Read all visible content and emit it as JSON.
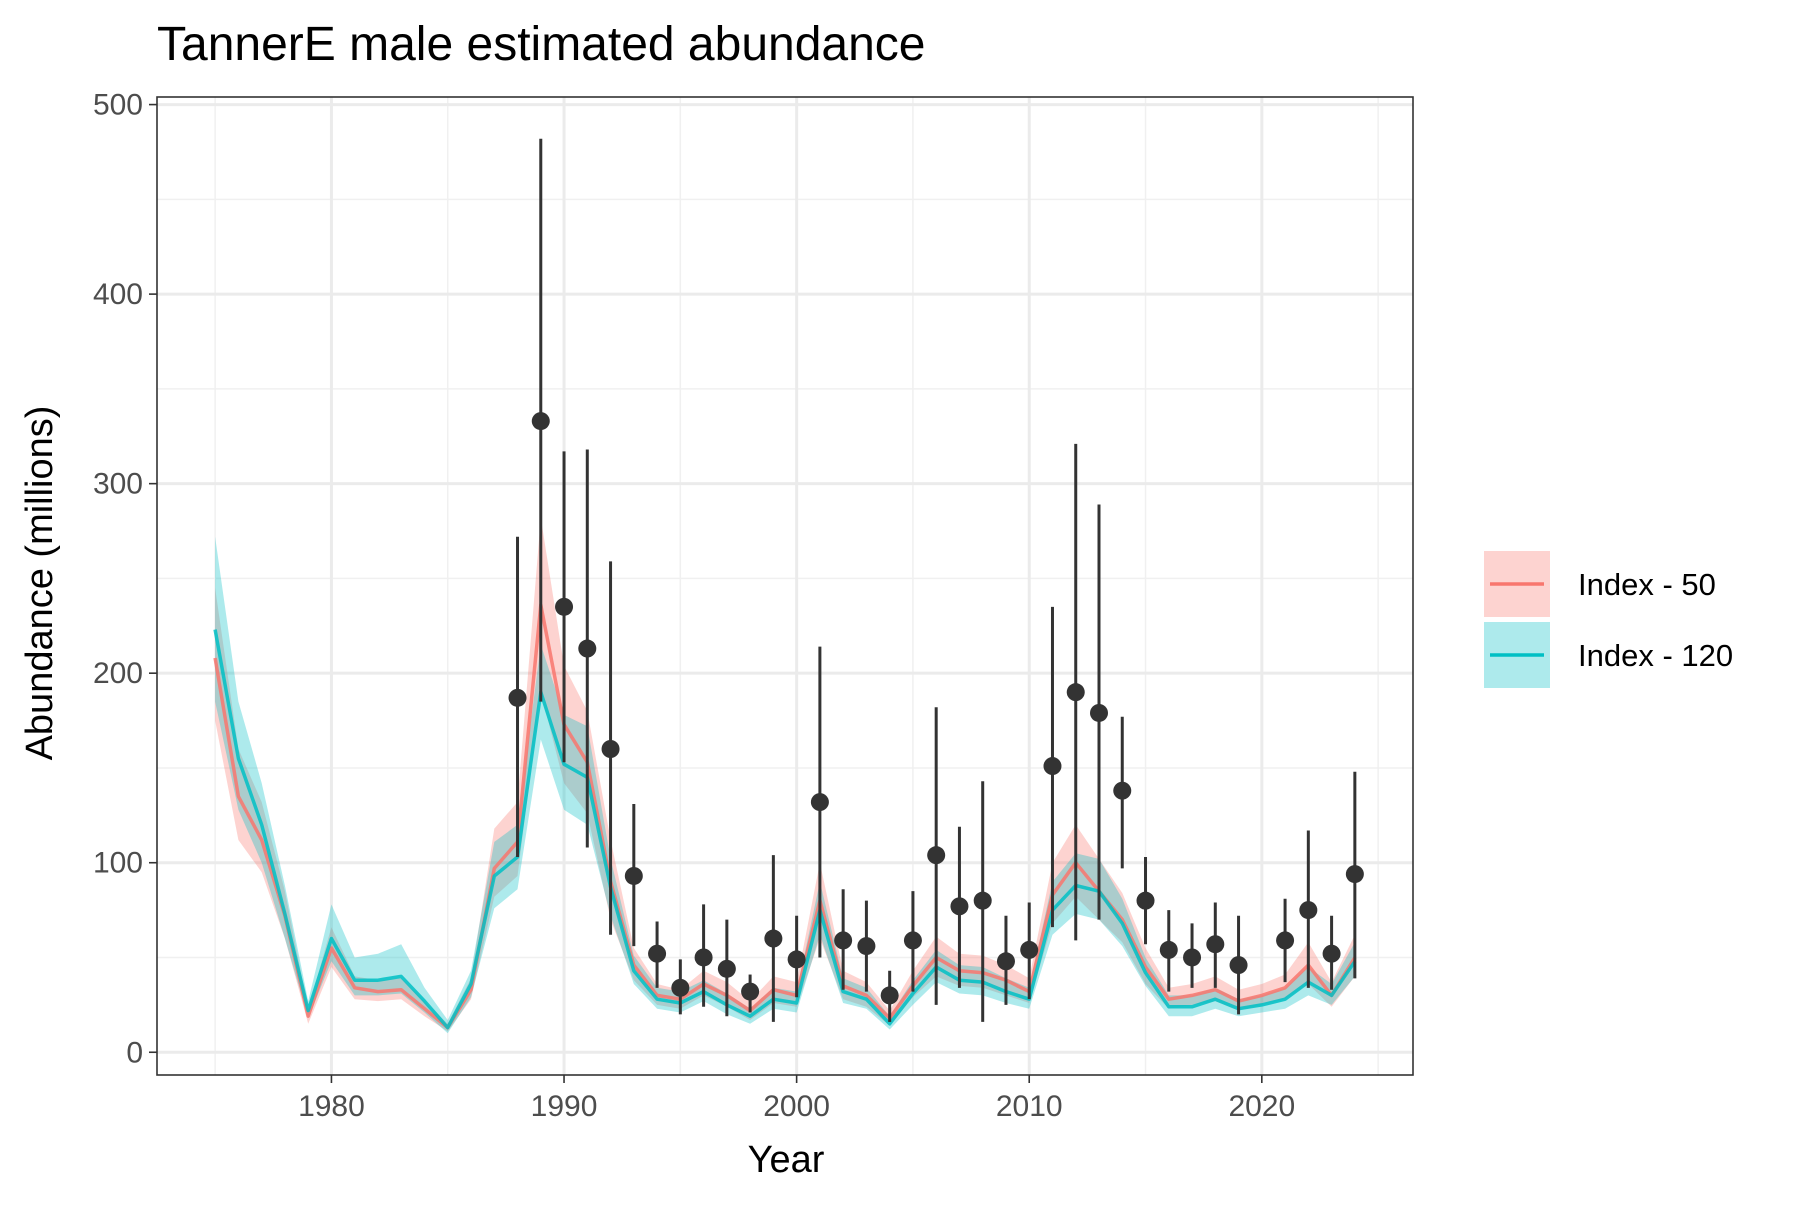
{
  "chart_data": {
    "type": "line",
    "title": "TannerE male estimated abundance",
    "xlabel": "Year",
    "ylabel": "Abundance (millions)",
    "xlim": [
      1972.5,
      2026.5
    ],
    "ylim": [
      -12,
      504
    ],
    "x_ticks": [
      1980,
      1990,
      2000,
      2010,
      2020
    ],
    "y_ticks": [
      0,
      100,
      200,
      300,
      400,
      500
    ],
    "grid": true,
    "legend_position": "right",
    "series": [
      {
        "name": "Index - 50",
        "color": "#F8766D",
        "x": [
          1975,
          1976,
          1977,
          1978,
          1979,
          1980,
          1981,
          1982,
          1983,
          1984,
          1985,
          1986,
          1987,
          1988,
          1989,
          1990,
          1991,
          1992,
          1993,
          1994,
          1995,
          1996,
          1997,
          1998,
          1999,
          2000,
          2001,
          2002,
          2003,
          2004,
          2005,
          2006,
          2007,
          2008,
          2009,
          2010,
          2011,
          2012,
          2013,
          2014,
          2015,
          2016,
          2017,
          2018,
          2019,
          2020,
          2021,
          2022,
          2023,
          2024
        ],
        "values": [
          208,
          135,
          112,
          72,
          19,
          55,
          34,
          32,
          33,
          23,
          13,
          33,
          97,
          111,
          236,
          173,
          153,
          90,
          46,
          30,
          28,
          36,
          30,
          22,
          33,
          30,
          80,
          35,
          30,
          18,
          35,
          50,
          43,
          42,
          38,
          32,
          83,
          100,
          85,
          70,
          45,
          28,
          30,
          33,
          27,
          30,
          34,
          46,
          30,
          50
        ],
        "lower": [
          175,
          112,
          95,
          60,
          15,
          45,
          28,
          27,
          28,
          19,
          11,
          28,
          82,
          93,
          190,
          142,
          126,
          70,
          38,
          25,
          23,
          30,
          24,
          17,
          26,
          24,
          60,
          28,
          24,
          14,
          29,
          40,
          35,
          34,
          30,
          26,
          68,
          82,
          70,
          58,
          36,
          23,
          25,
          27,
          22,
          25,
          28,
          36,
          24,
          40
        ],
        "upper": [
          245,
          160,
          132,
          85,
          23,
          66,
          40,
          38,
          39,
          27,
          15,
          39,
          118,
          132,
          282,
          204,
          180,
          112,
          55,
          36,
          33,
          43,
          37,
          27,
          40,
          37,
          100,
          43,
          37,
          22,
          43,
          61,
          52,
          51,
          46,
          39,
          100,
          120,
          102,
          84,
          55,
          34,
          36,
          40,
          33,
          36,
          41,
          58,
          37,
          62
        ]
      },
      {
        "name": "Index - 120",
        "color": "#00BFC4",
        "x": [
          1975,
          1976,
          1977,
          1978,
          1979,
          1980,
          1981,
          1982,
          1983,
          1984,
          1985,
          1986,
          1987,
          1988,
          1989,
          1990,
          1991,
          1992,
          1993,
          1994,
          1995,
          1996,
          1997,
          1998,
          1999,
          2000,
          2001,
          2002,
          2003,
          2004,
          2005,
          2006,
          2007,
          2008,
          2009,
          2010,
          2011,
          2012,
          2013,
          2014,
          2015,
          2016,
          2017,
          2018,
          2019,
          2020,
          2021,
          2022,
          2023,
          2024
        ],
        "values": [
          223,
          155,
          120,
          73,
          22,
          60,
          38,
          38,
          40,
          27,
          13,
          36,
          93,
          103,
          190,
          152,
          145,
          87,
          43,
          28,
          26,
          32,
          25,
          19,
          28,
          26,
          75,
          32,
          28,
          15,
          31,
          45,
          38,
          37,
          32,
          28,
          75,
          88,
          85,
          68,
          42,
          24,
          24,
          28,
          23,
          25,
          28,
          37,
          30,
          48
        ],
        "lower": [
          185,
          128,
          100,
          60,
          18,
          48,
          30,
          30,
          31,
          21,
          10,
          29,
          76,
          86,
          165,
          128,
          120,
          72,
          36,
          23,
          21,
          27,
          20,
          15,
          23,
          21,
          62,
          26,
          23,
          12,
          25,
          37,
          31,
          30,
          26,
          23,
          62,
          73,
          70,
          56,
          35,
          19,
          19,
          23,
          19,
          21,
          23,
          30,
          25,
          40
        ],
        "upper": [
          272,
          185,
          142,
          88,
          27,
          78,
          50,
          52,
          57,
          34,
          17,
          43,
          111,
          120,
          215,
          178,
          172,
          102,
          51,
          34,
          32,
          38,
          31,
          23,
          34,
          32,
          90,
          39,
          34,
          19,
          38,
          54,
          46,
          45,
          39,
          34,
          90,
          105,
          102,
          81,
          50,
          30,
          30,
          34,
          28,
          30,
          34,
          45,
          36,
          58
        ]
      }
    ],
    "observed": {
      "color": "#333333",
      "x": [
        1988,
        1989,
        1990,
        1991,
        1992,
        1993,
        1994,
        1995,
        1996,
        1997,
        1998,
        1999,
        2000,
        2001,
        2002,
        2003,
        2004,
        2005,
        2006,
        2007,
        2008,
        2009,
        2010,
        2011,
        2012,
        2013,
        2014,
        2015,
        2016,
        2017,
        2018,
        2019,
        2021,
        2022,
        2023,
        2024
      ],
      "values": [
        187,
        333,
        235,
        213,
        160,
        93,
        52,
        34,
        50,
        44,
        32,
        60,
        49,
        132,
        59,
        56,
        30,
        59,
        104,
        77,
        80,
        48,
        54,
        151,
        190,
        179,
        138,
        80,
        54,
        50,
        57,
        46,
        59,
        75,
        52,
        94
      ],
      "lower": [
        103,
        185,
        153,
        108,
        62,
        56,
        34,
        20,
        24,
        19,
        21,
        16,
        29,
        50,
        33,
        32,
        16,
        32,
        25,
        34,
        16,
        25,
        28,
        66,
        59,
        70,
        97,
        57,
        32,
        34,
        34,
        20,
        37,
        34,
        33,
        39
      ],
      "upper": [
        272,
        482,
        317,
        318,
        259,
        131,
        69,
        49,
        78,
        70,
        41,
        104,
        72,
        214,
        86,
        80,
        43,
        85,
        182,
        119,
        143,
        72,
        79,
        235,
        321,
        289,
        177,
        103,
        75,
        68,
        79,
        72,
        81,
        117,
        72,
        148
      ]
    }
  }
}
